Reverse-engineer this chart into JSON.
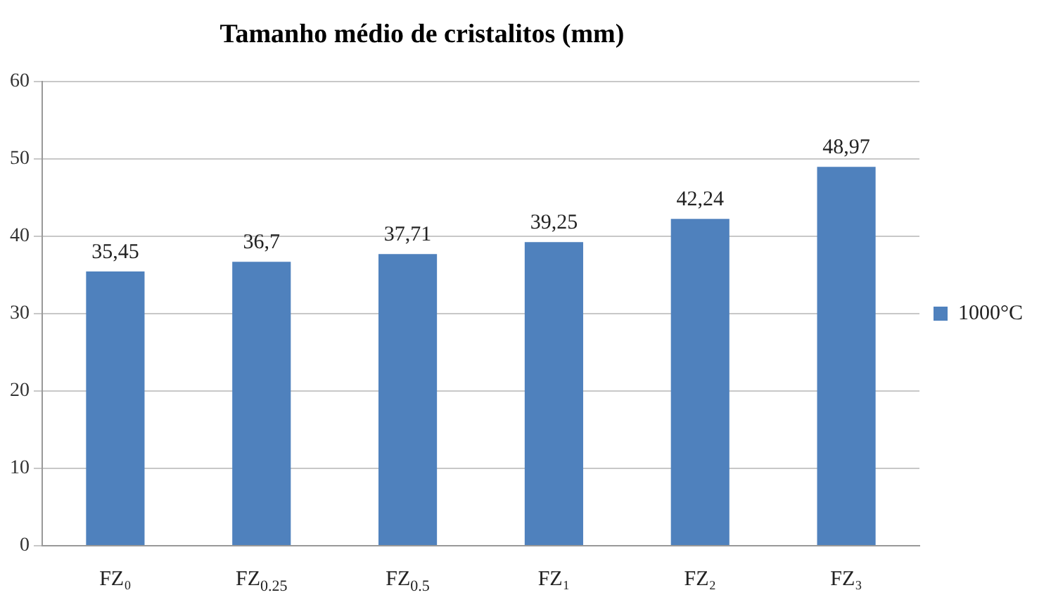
{
  "chart_data": {
    "type": "bar",
    "title": "Tamanho médio de cristalitos (mm)",
    "categories": [
      "FZ₀",
      "FZ$_{0.25}$",
      "FZ$_{0.5}$",
      "FZ₁",
      "FZ₂",
      "FZ₃"
    ],
    "series": [
      {
        "name": "1000°C",
        "color": "#4f81bd",
        "values": [
          35.45,
          36.7,
          37.71,
          39.25,
          42.24,
          48.97
        ],
        "value_labels": [
          "35,45",
          "36,7",
          "37,71",
          "39,25",
          "42,24",
          "48,97"
        ]
      }
    ],
    "ylim": [
      0,
      60
    ],
    "yticks": [
      0,
      10,
      20,
      30,
      40,
      50,
      60
    ],
    "grid": "y",
    "legend": "right"
  }
}
